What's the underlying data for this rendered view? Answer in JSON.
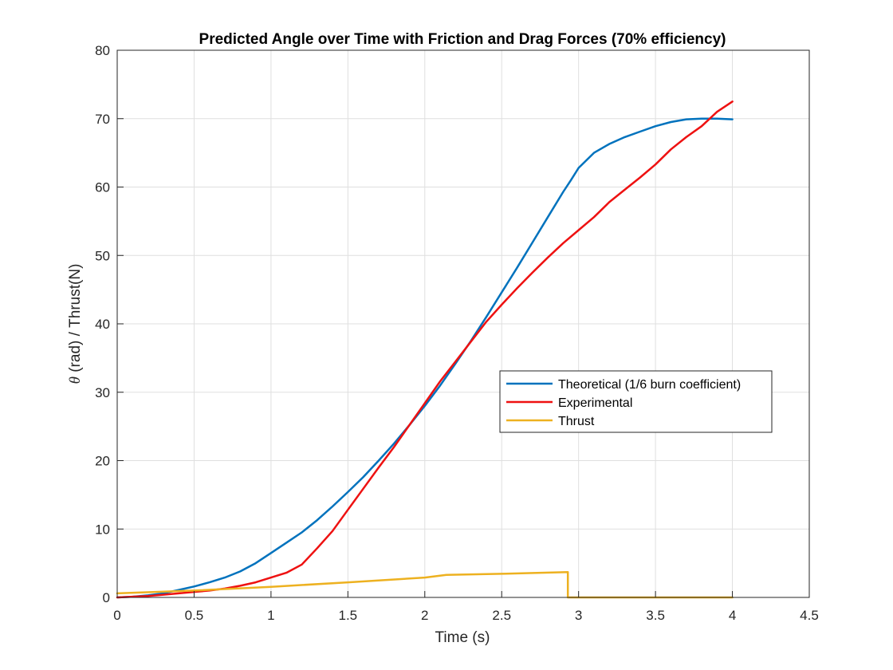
{
  "chart_data": {
    "type": "line",
    "title": "Predicted Angle over Time with Friction and Drag Forces (70% efficiency)",
    "xlabel": "Time (s)",
    "ylabel_symbol": "θ",
    "ylabel_rest": " (rad) / Thrust(N)",
    "xlim": [
      0,
      4.5
    ],
    "ylim": [
      0,
      80
    ],
    "xticks": [
      "0",
      "0.5",
      "1",
      "1.5",
      "2",
      "2.5",
      "3",
      "3.5",
      "4",
      "4.5"
    ],
    "yticks": [
      "0",
      "10",
      "20",
      "30",
      "40",
      "50",
      "60",
      "70",
      "80"
    ],
    "grid": true,
    "legend_position": "center-right",
    "series": [
      {
        "name": "Theoretical (1/6 burn coefficient)",
        "color": "#0072BD",
        "x": [
          0,
          0.1,
          0.2,
          0.3,
          0.4,
          0.5,
          0.6,
          0.7,
          0.8,
          0.9,
          1.0,
          1.1,
          1.2,
          1.3,
          1.4,
          1.5,
          1.6,
          1.7,
          1.8,
          1.9,
          2.0,
          2.1,
          2.2,
          2.3,
          2.4,
          2.5,
          2.6,
          2.7,
          2.8,
          2.9,
          2.95,
          3.0,
          3.1,
          3.2,
          3.3,
          3.4,
          3.5,
          3.6,
          3.7,
          3.8,
          3.9,
          4.0
        ],
        "y": [
          0,
          0.1,
          0.3,
          0.6,
          1.1,
          1.6,
          2.2,
          2.9,
          3.8,
          5.0,
          6.5,
          8.0,
          9.5,
          11.3,
          13.3,
          15.4,
          17.6,
          20.0,
          22.5,
          25.2,
          28.0,
          31.0,
          34.2,
          37.5,
          41.0,
          44.6,
          48.2,
          51.9,
          55.6,
          59.3,
          61.0,
          62.8,
          65.0,
          66.3,
          67.3,
          68.1,
          68.9,
          69.5,
          69.9,
          70.0,
          70.0,
          69.9
        ]
      },
      {
        "name": "Experimental",
        "color": "#EE1111",
        "x": [
          0,
          0.1,
          0.2,
          0.3,
          0.4,
          0.5,
          0.6,
          0.7,
          0.8,
          0.9,
          1.0,
          1.1,
          1.2,
          1.3,
          1.4,
          1.5,
          1.6,
          1.7,
          1.8,
          1.9,
          2.0,
          2.1,
          2.2,
          2.3,
          2.4,
          2.5,
          2.6,
          2.7,
          2.8,
          2.9,
          3.0,
          3.1,
          3.2,
          3.3,
          3.4,
          3.5,
          3.6,
          3.7,
          3.8,
          3.9,
          4.0
        ],
        "y": [
          0,
          0.1,
          0.2,
          0.4,
          0.6,
          0.8,
          1.0,
          1.3,
          1.7,
          2.2,
          2.9,
          3.6,
          4.8,
          7.2,
          9.7,
          12.8,
          15.9,
          19.0,
          22.0,
          25.2,
          28.4,
          31.6,
          34.5,
          37.4,
          40.3,
          42.8,
          45.2,
          47.5,
          49.7,
          51.8,
          53.7,
          55.6,
          57.8,
          59.6,
          61.4,
          63.3,
          65.5,
          67.3,
          68.9,
          71.0,
          72.5
        ]
      },
      {
        "name": "Thrust",
        "color": "#EDB120",
        "x": [
          0,
          0.5,
          1.0,
          1.5,
          2.0,
          2.14,
          2.5,
          2.93,
          2.93,
          3.0,
          3.5,
          4.0
        ],
        "y": [
          0.6,
          1.0,
          1.55,
          2.2,
          2.9,
          3.3,
          3.45,
          3.7,
          0,
          0,
          0,
          0
        ]
      }
    ]
  }
}
